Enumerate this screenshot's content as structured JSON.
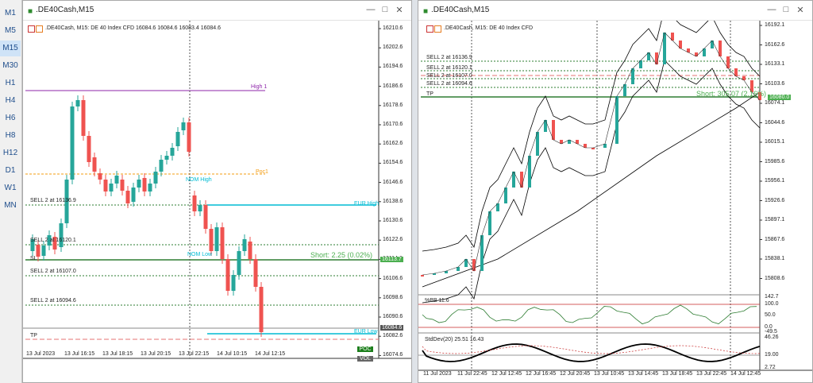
{
  "timeframes": [
    "M1",
    "M5",
    "M15",
    "M30",
    "H1",
    "H4",
    "H6",
    "H8",
    "H12",
    "D1",
    "W1",
    "MN"
  ],
  "active_timeframe": "M15",
  "left": {
    "title": ".DE40Cash,M15",
    "info": ".DE40Cash, M15:  DE 40 Index CFD   16084.6 16084.6 16083.4 16084.6",
    "price_ticks": [
      "16210.6",
      "16202.6",
      "16194.6",
      "16186.6",
      "16178.6",
      "16170.6",
      "16162.6",
      "16154.6",
      "16146.6",
      "16138.6",
      "16130.6",
      "16122.6",
      "16114.6",
      "16106.6",
      "16098.6",
      "16090.6",
      "16082.6",
      "16074.6"
    ],
    "time_ticks": [
      "13 Jul 2023",
      "13 Jul 16:15",
      "13 Jul 18:15",
      "13 Jul 20:15",
      "13 Jul 22:15",
      "14 Jul 10:15",
      "14 Jul 12:15"
    ],
    "levels": {
      "high": "High 1",
      "poc": "Poc1",
      "sell1": "SELL 2 at 16136.9",
      "sell2": "SELL 2 at 16120.1",
      "sell3": "SELL 2 at 16107.0",
      "sell4": "SELL 2 at 16094.6",
      "sl": "SL",
      "tp": "TP",
      "eur_high": "EUR High",
      "eur_low": "EUR Low",
      "nom_high": "NOM High",
      "nom_low": "NOM Low",
      "short_text": "Short: 2.25  (0.02%)",
      "price_tag_sl": "16113.7",
      "price_tag_cur": "16084.6",
      "poc_btn": "POC",
      "vol_btn": "VOL"
    },
    "colors": {
      "bull": "#26a69a",
      "bear": "#ef5350",
      "high": "#8e24aa",
      "poc": "#f39c12",
      "eur": "#00bcd4",
      "green": "#2e7d32"
    }
  },
  "right": {
    "title": ".DE40Cash,M15",
    "info": ".DE40Cash, M15:  DE 40 Index CFD",
    "price_ticks": [
      "16192.1",
      "16162.6",
      "16133.1",
      "16103.6",
      "16074.1",
      "16044.6",
      "16015.1",
      "15985.6",
      "15956.1",
      "15926.6",
      "15897.1",
      "15867.6",
      "15838.1",
      "15808.6"
    ],
    "time_ticks": [
      "11 Jul 2023",
      "11 Jul 22:45",
      "12 Jul 12:45",
      "12 Jul 16:45",
      "12 Jul 20:45",
      "13 Jul 10:45",
      "13 Jul 14:45",
      "13 Jul 18:45",
      "13 Jul 22:45",
      "14 Jul 12:45"
    ],
    "levels": {
      "sell1": "SELL 2 at 16136.9",
      "sell2": "SELL 2 at 16120.1",
      "sell3": "SELL 2 at 16107.0",
      "sell4": "SELL 2 at 16094.6",
      "tp": "TP",
      "short_text": "Short: 305.07  (2.16%)",
      "price_tag": "16080.0"
    },
    "bb_label": "%BB 11.6",
    "bb_ticks": [
      "142.7",
      "100.0",
      "50.0",
      "0.0",
      "-49.5"
    ],
    "std_label": "StdDev(20) 25.51 16.43",
    "std_ticks": [
      "46.26",
      "19.00",
      "2.72"
    ]
  }
}
